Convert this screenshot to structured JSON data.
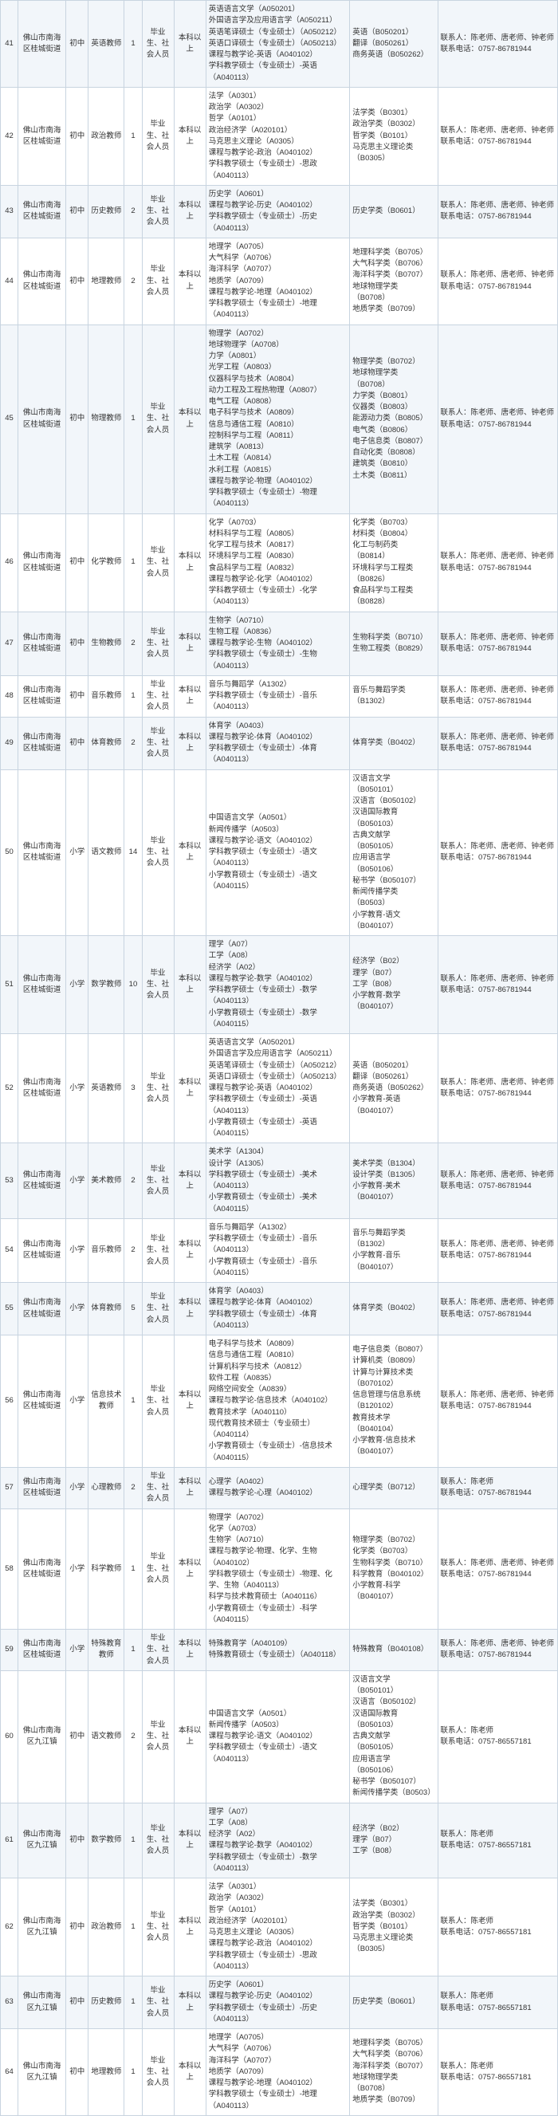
{
  "rows": [
    {
      "n": "41",
      "org": "佛山市南海区桂城街道",
      "lvl": "初中",
      "pos": "英语教师",
      "cnt": "1",
      "src": "毕业生、社会人员",
      "edu": "本科以上",
      "majA": "英语语言文学（A050201）\n外国语言学及应用语言学（A050211）\n英语笔译硕士（专业硕士）（A050212）\n英语口译硕士（专业硕士）（A050213）\n课程与教学论-英语（A040102）\n学科教学硕士（专业硕士）-英语（A040113）",
      "majB": "英语（B050201）\n翻译（B050261）\n商务英语（B050262）",
      "contact": "联系人：陈老师、唐老师、钟老师\n联系电话：0757-86781944"
    },
    {
      "n": "42",
      "org": "佛山市南海区桂城街道",
      "lvl": "初中",
      "pos": "政治教师",
      "cnt": "1",
      "src": "毕业生、社会人员",
      "edu": "本科以上",
      "majA": "法学（A0301）\n政治学（A0302）\n哲学（A0101）\n政治经济学（A020101）\n马克思主义理论（A0305）\n课程与教学论-政治（A040102）\n学科教学硕士（专业硕士）-思政（A040113）",
      "majB": "法学类（B0301）\n政治学类（B0302）\n哲学类（B0101）\n马克思主义理论类（B0305）",
      "contact": "联系人：陈老师、唐老师、钟老师\n联系电话：0757-86781944"
    },
    {
      "n": "43",
      "org": "佛山市南海区桂城街道",
      "lvl": "初中",
      "pos": "历史教师",
      "cnt": "2",
      "src": "毕业生、社会人员",
      "edu": "本科以上",
      "majA": "历史学（A0601）\n课程与教学论-历史（A040102）\n学科教学硕士（专业硕士）-历史（A040113）",
      "majB": "历史学类（B0601）",
      "contact": "联系人：陈老师、唐老师、钟老师\n联系电话：0757-86781944"
    },
    {
      "n": "44",
      "org": "佛山市南海区桂城街道",
      "lvl": "初中",
      "pos": "地理教师",
      "cnt": "2",
      "src": "毕业生、社会人员",
      "edu": "本科以上",
      "majA": "地理学（A0705）\n大气科学（A0706）\n海洋科学（A0707）\n地质学（A0709）\n课程与教学论-地理（A040102）\n学科教学硕士（专业硕士）-地理（A040113）",
      "majB": "地理科学类（B0705）\n大气科学类（B0706）\n海洋科学类（B0707）\n地球物理学类（B0708）\n地质学类（B0709）",
      "contact": "联系人：陈老师、唐老师、钟老师\n联系电话：0757-86781944"
    },
    {
      "n": "45",
      "org": "佛山市南海区桂城街道",
      "lvl": "初中",
      "pos": "物理教师",
      "cnt": "1",
      "src": "毕业生、社会人员",
      "edu": "本科以上",
      "majA": "物理学（A0702）\n地球物理学（A0708）\n力学（A0801）\n光学工程（A0803）\n仪器科学与技术（A0804）\n动力工程及工程热物理（A0807）\n电气工程（A0808）\n电子科学与技术（A0809）\n信息与通信工程（A0810）\n控制科学与工程（A0811）\n建筑学（A0813）\n土木工程（A0814）\n水利工程（A0815）\n课程与教学论-物理（A040102）\n学科教学硕士（专业硕士）-物理（A040113）",
      "majB": "物理学类（B0702）\n地球物理学类（B0708）\n力学类（B0801）\n仪器类（B0803）\n能源动力类（B0805）\n电气类（B0806）\n电子信息类（B0807）\n自动化类（B0808）\n建筑类（B0810）\n土木类（B0811）",
      "contact": "联系人：陈老师、唐老师、钟老师\n联系电话：0757-86781944"
    },
    {
      "n": "46",
      "org": "佛山市南海区桂城街道",
      "lvl": "初中",
      "pos": "化学教师",
      "cnt": "1",
      "src": "毕业生、社会人员",
      "edu": "本科以上",
      "majA": "化学（A0703）\n材料科学与工程（A0805）\n化学工程与技术（A0817）\n环境科学与工程（A0830）\n食品科学与工程（A0832）\n课程与教学论-化学（A040102）\n学科教学硕士（专业硕士）-化学（A040113）",
      "majB": "化学类（B0703）\n材料类（B0804）\n化工与制药类（B0814）\n环境科学与工程类（B0826）\n食品科学与工程类（B0828）",
      "contact": "联系人：陈老师、唐老师、钟老师\n联系电话：0757-86781944"
    },
    {
      "n": "47",
      "org": "佛山市南海区桂城街道",
      "lvl": "初中",
      "pos": "生物教师",
      "cnt": "2",
      "src": "毕业生、社会人员",
      "edu": "本科以上",
      "majA": "生物学（A0710）\n生物工程（A0836）\n课程与教学论-生物（A040102）\n学科教学硕士（专业硕士）-生物（A040113）",
      "majB": "生物科学类（B0710）\n生物工程类（B0829）",
      "contact": "联系人：陈老师、唐老师、钟老师\n联系电话：0757-86781944"
    },
    {
      "n": "48",
      "org": "佛山市南海区桂城街道",
      "lvl": "初中",
      "pos": "音乐教师",
      "cnt": "1",
      "src": "毕业生、社会人员",
      "edu": "本科以上",
      "majA": "音乐与舞蹈学（A1302）\n学科教学硕士（专业硕士）-音乐（A040113）",
      "majB": "音乐与舞蹈学类（B1302）",
      "contact": "联系人：陈老师、唐老师、钟老师\n联系电话：0757-86781944"
    },
    {
      "n": "49",
      "org": "佛山市南海区桂城街道",
      "lvl": "初中",
      "pos": "体育教师",
      "cnt": "2",
      "src": "毕业生、社会人员",
      "edu": "本科以上",
      "majA": "体育学（A0403）\n课程与教学论-体育（A040102）\n学科教学硕士（专业硕士）-体育（A040113）",
      "majB": "体育学类（B0402）",
      "contact": "联系人：陈老师、唐老师、钟老师\n联系电话：0757-86781944"
    },
    {
      "n": "50",
      "org": "佛山市南海区桂城街道",
      "lvl": "小学",
      "pos": "语文教师",
      "cnt": "14",
      "src": "毕业生、社会人员",
      "edu": "本科以上",
      "majA": "中国语言文学（A0501）\n新闻传播学（A0503）\n课程与教学论-语文（A040102）\n学科教学硕士（专业硕士）-语文（A040113）\n小学教育硕士（专业硕士）-语文（A040115）",
      "majB": "汉语言文学（B050101）\n汉语言（B050102）\n汉语国际教育（B050103）\n古典文献学（B050105）\n应用语言学（B050106）\n秘书学（B050107）\n新闻传播学类（B0503）\n小学教育-语文（B040107）",
      "contact": "联系人：陈老师、唐老师、钟老师\n联系电话：0757-86781944"
    },
    {
      "n": "51",
      "org": "佛山市南海区桂城街道",
      "lvl": "小学",
      "pos": "数学教师",
      "cnt": "10",
      "src": "毕业生、社会人员",
      "edu": "本科以上",
      "majA": "理学（A07）\n工学（A08）\n经济学（A02）\n课程与教学论-数学（A040102）\n学科教学硕士（专业硕士）-数学（A040113）\n小学教育硕士（专业硕士）-数学（A040115）",
      "majB": "经济学（B02）\n理学（B07）\n工学（B08）\n小学教育-数学（B040107）",
      "contact": "联系人：陈老师、唐老师、钟老师\n联系电话：0757-86781944"
    },
    {
      "n": "52",
      "org": "佛山市南海区桂城街道",
      "lvl": "小学",
      "pos": "英语教师",
      "cnt": "3",
      "src": "毕业生、社会人员",
      "edu": "本科以上",
      "majA": "英语语言文学（A050201）\n外国语言学及应用语言学（A050211）\n英语笔译硕士（专业硕士）（A050212）\n英语口译硕士（专业硕士）（A050213）\n课程与教学论-英语（A040102）\n学科教学硕士（专业硕士）-英语（A040113）\n小学教育硕士（专业硕士）-英语（A040115）",
      "majB": "英语（B050201）\n翻译（B050261）\n商务英语（B050262）\n小学教育-英语（B040107）",
      "contact": "联系人：陈老师、唐老师、钟老师\n联系电话：0757-86781944"
    },
    {
      "n": "53",
      "org": "佛山市南海区桂城街道",
      "lvl": "小学",
      "pos": "美术教师",
      "cnt": "2",
      "src": "毕业生、社会人员",
      "edu": "本科以上",
      "majA": "美术学（A1304）\n设计学（A1305）\n学科教学硕士（专业硕士）-美术（A040113）\n小学教育硕士（专业硕士）-美术（A040115）",
      "majB": "美术学类（B1304）\n设计学类（B1305）\n小学教育-美术（B040107）",
      "contact": "联系人：陈老师、唐老师、钟老师\n联系电话：0757-86781944"
    },
    {
      "n": "54",
      "org": "佛山市南海区桂城街道",
      "lvl": "小学",
      "pos": "音乐教师",
      "cnt": "2",
      "src": "毕业生、社会人员",
      "edu": "本科以上",
      "majA": "音乐与舞蹈学（A1302）\n学科教学硕士（专业硕士）-音乐（A040113）\n小学教育硕士（专业硕士）-音乐（A040115）",
      "majB": "音乐与舞蹈学类（B1302）\n小学教育-音乐（B040107）",
      "contact": "联系人：陈老师、唐老师、钟老师\n联系电话：0757-86781944"
    },
    {
      "n": "55",
      "org": "佛山市南海区桂城街道",
      "lvl": "小学",
      "pos": "体育教师",
      "cnt": "5",
      "src": "毕业生、社会人员",
      "edu": "本科以上",
      "majA": "体育学（A0403）\n课程与教学论-体育（A040102）\n学科教学硕士（专业硕士）-体育（A040113）",
      "majB": "体育学类（B0402）",
      "contact": "联系人：陈老师、唐老师、钟老师\n联系电话：0757-86781944"
    },
    {
      "n": "56",
      "org": "佛山市南海区桂城街道",
      "lvl": "小学",
      "pos": "信息技术教师",
      "cnt": "1",
      "src": "毕业生、社会人员",
      "edu": "本科以上",
      "majA": "电子科学与技术（A0809）\n信息与通信工程（A0810）\n计算机科学与技术（A0812）\n软件工程（A0835）\n网络空间安全（A0839）\n课程与教学论-信息技术（A040102）\n教育技术学（A040110）\n现代教育技术硕士（专业硕士）（A040114）\n小学教育硕士（专业硕士）-信息技术（A040115）",
      "majB": "电子信息类（B0807）\n计算机类（B0809）\n计算与计算技术类（B070102）\n信息管理与信息系统（B120102）\n教育技术学（B040104）\n小学教育-信息技术（B040107）",
      "contact": "联系人：陈老师、唐老师、钟老师\n联系电话：0757-86781944"
    },
    {
      "n": "57",
      "org": "佛山市南海区桂城街道",
      "lvl": "小学",
      "pos": "心理教师",
      "cnt": "2",
      "src": "毕业生、社会人员",
      "edu": "本科以上",
      "majA": "心理学（A0402）\n课程与教学论-心理（A040102）",
      "majB": "心理学类（B0712）",
      "contact": "联系人：陈老师\n联系电话：0757-86781944"
    },
    {
      "n": "58",
      "org": "佛山市南海区桂城街道",
      "lvl": "小学",
      "pos": "科学教师",
      "cnt": "1",
      "src": "毕业生、社会人员",
      "edu": "本科以上",
      "majA": "物理学（A0702）\n化学（A0703）\n生物学（A0710）\n课程与教学论-物理、化学、生物（A040102）\n学科教学硕士（专业硕士）-物理、化学、生物（A040113）\n科学与技术教育硕士（A040116）\n小学教育硕士（专业硕士）-科学（A040115）",
      "majB": "物理学类（B0702）\n化学类（B0703）\n生物科学类（B0710）\n科学教育（B040102）\n小学教育-科学（B040107）",
      "contact": "联系人：陈老师、唐老师、钟老师\n联系电话：0757-86781944"
    },
    {
      "n": "59",
      "org": "佛山市南海区桂城街道",
      "lvl": "小学",
      "pos": "特殊教育教师",
      "cnt": "1",
      "src": "毕业生、社会人员",
      "edu": "本科以上",
      "majA": "特殊教育学（A040109）\n特殊教育硕士（专业硕士）（A040118）",
      "majB": "特殊教育（B040108）",
      "contact": "联系人：陈老师、唐老师、钟老师\n联系电话：0757-86781944"
    },
    {
      "n": "60",
      "org": "佛山市南海区九江镇",
      "lvl": "初中",
      "pos": "语文教师",
      "cnt": "2",
      "src": "毕业生、社会人员",
      "edu": "本科以上",
      "majA": "中国语言文学（A0501）\n新闻传播学（A0503）\n课程与教学论-语文（A040102）\n学科教学硕士（专业硕士）-语文（A040113）",
      "majB": "汉语言文学（B050101）\n汉语言（B050102）\n汉语国际教育（B050103）\n古典文献学（B050105）\n应用语言学（B050106）\n秘书学（B050107）\n新闻传播学类（B0503）",
      "contact": "联系人：陈老师\n联系电话：0757-86557181"
    },
    {
      "n": "61",
      "org": "佛山市南海区九江镇",
      "lvl": "初中",
      "pos": "数学教师",
      "cnt": "1",
      "src": "毕业生、社会人员",
      "edu": "本科以上",
      "majA": "理学（A07）\n工学（A08）\n经济学（A02）\n课程与教学论-数学（A040102）\n学科教学硕士（专业硕士）-数学（A040113）",
      "majB": "经济学（B02）\n理学（B07）\n工学（B08）",
      "contact": "联系人：陈老师\n联系电话：0757-86557181"
    },
    {
      "n": "62",
      "org": "佛山市南海区九江镇",
      "lvl": "初中",
      "pos": "政治教师",
      "cnt": "1",
      "src": "毕业生、社会人员",
      "edu": "本科以上",
      "majA": "法学（A0301）\n政治学（A0302）\n哲学（A0101）\n政治经济学（A020101）\n马克思主义理论（A0305）\n课程与教学论-政治（A040102）\n学科教学硕士（专业硕士）-思政（A040113）",
      "majB": "法学类（B0301）\n政治学类（B0302）\n哲学类（B0101）\n马克思主义理论类（B0305）",
      "contact": "联系人：陈老师\n联系电话：0757-86557181"
    },
    {
      "n": "63",
      "org": "佛山市南海区九江镇",
      "lvl": "初中",
      "pos": "历史教师",
      "cnt": "1",
      "src": "毕业生、社会人员",
      "edu": "本科以上",
      "majA": "历史学（A0601）\n课程与教学论-历史（A040102）\n学科教学硕士（专业硕士）-历史（A040113）",
      "majB": "历史学类（B0601）",
      "contact": "联系人：陈老师\n联系电话：0757-86557181"
    },
    {
      "n": "64",
      "org": "佛山市南海区九江镇",
      "lvl": "初中",
      "pos": "地理教师",
      "cnt": "1",
      "src": "毕业生、社会人员",
      "edu": "本科以上",
      "majA": "地理学（A0705）\n大气科学（A0706）\n海洋科学（A0707）\n地质学（A0709）\n课程与教学论-地理（A040102）\n学科教学硕士（专业硕士）-地理（A040113）",
      "majB": "地理科学类（B0705）\n大气科学类（B0706）\n海洋科学类（B0707）\n地球物理学类（B0708）\n地质学类（B0709）",
      "contact": "联系人：陈老师\n联系电话：0757-86557181"
    }
  ]
}
